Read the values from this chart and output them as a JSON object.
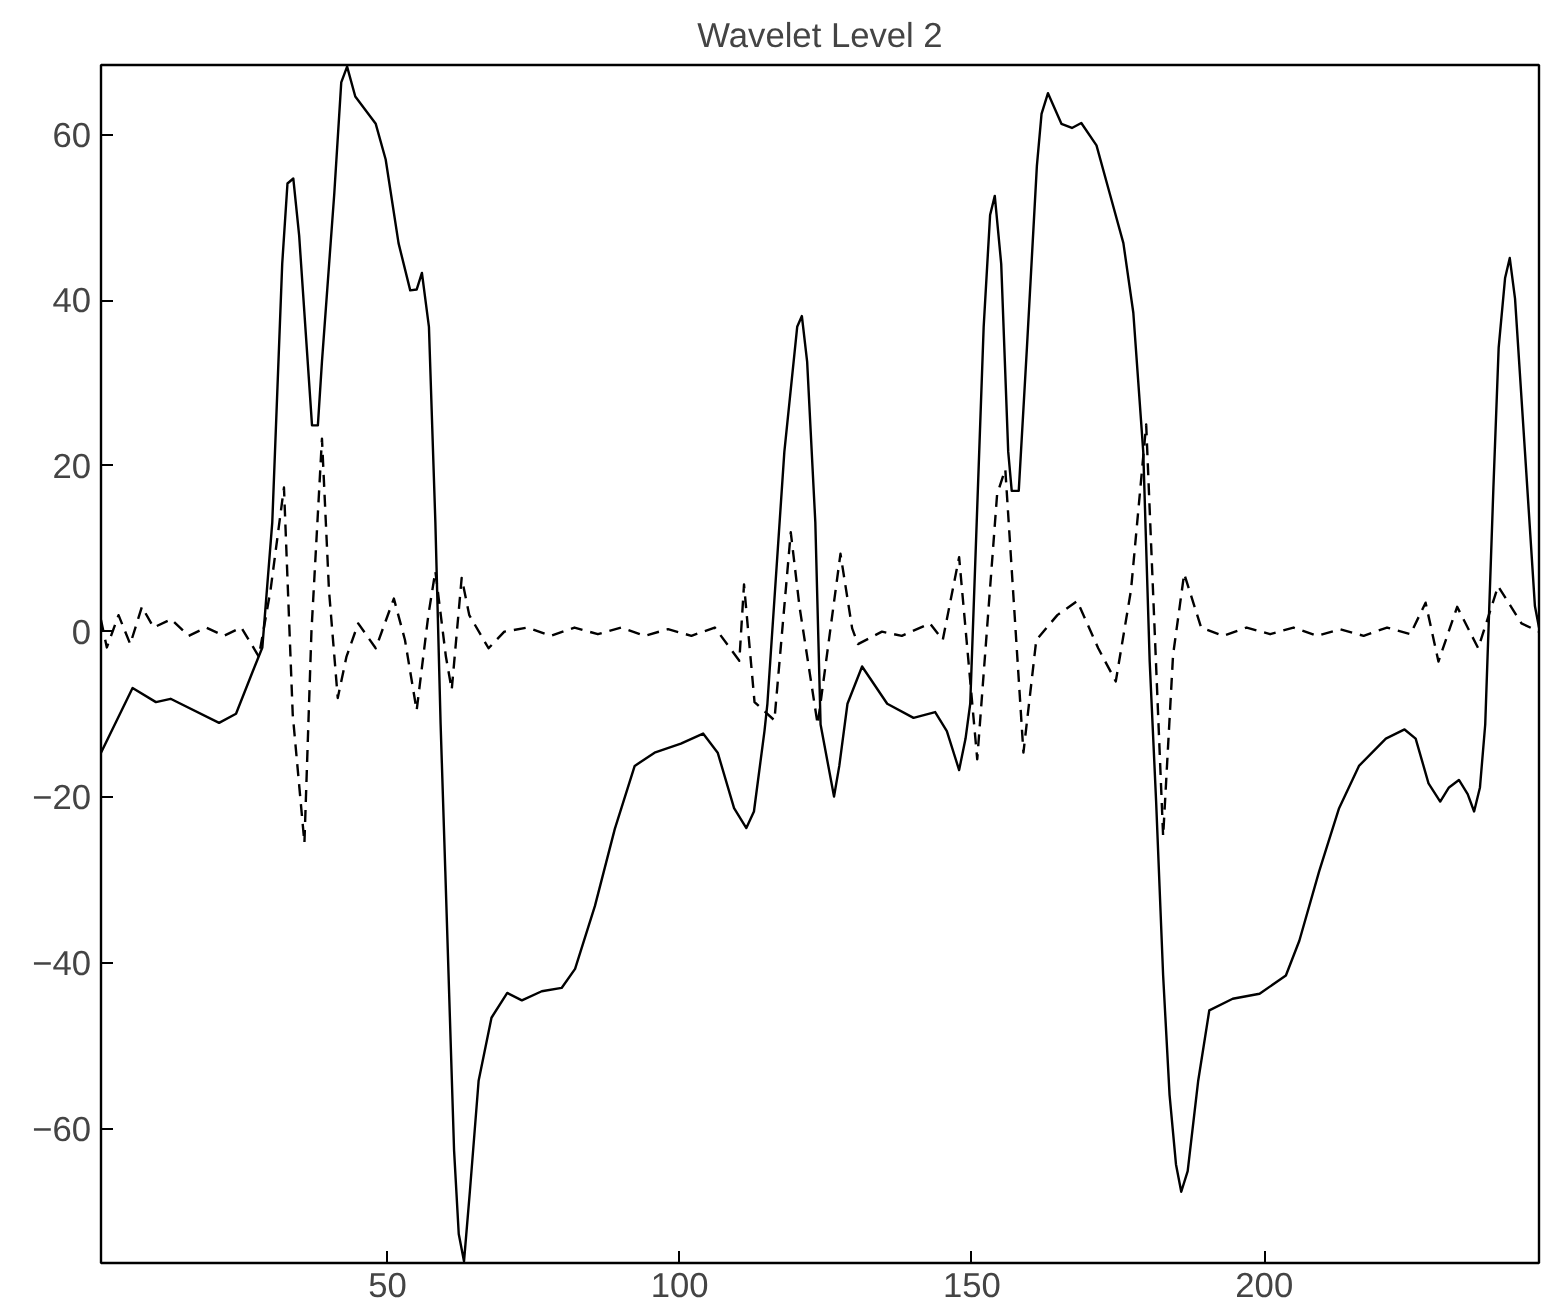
{
  "chart_data": {
    "type": "line",
    "title": "Wavelet Level 2",
    "xlim": [
      1,
      247
    ],
    "ylim": [
      -76.2,
      68.4
    ],
    "xticks": [
      50,
      100,
      150,
      200
    ],
    "yticks": [
      -60,
      -40,
      -20,
      0,
      20,
      40,
      60
    ],
    "grid": false,
    "series": [
      {
        "color": "#000000",
        "line_style": "solid",
        "x": [
          1,
          6.4,
          10.4,
          12.9,
          21.2,
          24.1,
          26.9,
          28.6,
          30.3,
          32.0,
          32.9,
          33.9,
          34.9,
          37.1,
          38.1,
          38.8,
          40.9,
          42.1,
          43.1,
          44.5,
          48.0,
          49.7,
          51.9,
          53.9,
          55.0,
          55.9,
          57.1,
          58.2,
          59.1,
          59.9,
          61.4,
          62.2,
          63.1,
          64.1,
          65.6,
          67.8,
          70.5,
          73.0,
          76.4,
          79.8,
          82.1,
          85.5,
          88.9,
          92.3,
          95.7,
          100.2,
          104.0,
          106.5,
          109.3,
          111.4,
          112.7,
          114.5,
          115.0,
          117.9,
          120.1,
          120.9,
          121.8,
          123.2,
          124.1,
          126.4,
          127.3,
          128.7,
          131.2,
          135.5,
          140.0,
          143.7,
          145.7,
          147.8,
          148.9,
          149.7,
          152.0,
          153.1,
          153.9,
          155.0,
          156.2,
          156.8,
          158.0,
          159.4,
          161.1,
          161.9,
          163.0,
          165.3,
          167.1,
          168.7,
          171.3,
          173.6,
          175.9,
          177.6,
          179.3,
          180.4,
          181.5,
          182.7,
          183.8,
          184.9,
          185.8,
          186.9,
          188.7,
          190.6,
          194.6,
          199.2,
          203.7,
          206.0,
          209.4,
          212.8,
          216.2,
          220.8,
          224.0,
          225.9,
          228.1,
          230.1,
          231.6,
          233.3,
          234.8,
          235.9,
          236.9,
          237.8,
          239.2,
          240.1,
          241.2,
          242.0,
          242.9,
          244.6,
          246.3,
          247
        ],
        "values": [
          -14.6,
          -6.8,
          -8.5,
          -8.1,
          -11.0,
          -9.9,
          -4.9,
          -1.9,
          13.2,
          44.4,
          54.1,
          54.7,
          47.8,
          24.9,
          24.9,
          32.6,
          52.8,
          66.3,
          68.2,
          64.6,
          61.3,
          57.0,
          46.9,
          41.2,
          41.3,
          43.3,
          36.8,
          13.2,
          -11.2,
          -28.9,
          -62.6,
          -72.7,
          -76.0,
          -67.6,
          -54.2,
          -46.6,
          -43.6,
          -44.5,
          -43.4,
          -43.0,
          -40.7,
          -33.1,
          -23.8,
          -16.2,
          -14.6,
          -13.5,
          -12.3,
          -14.6,
          -21.3,
          -23.7,
          -21.7,
          -12.0,
          -8.7,
          21.7,
          36.8,
          38.1,
          32.6,
          13.2,
          -11.2,
          -19.9,
          -16.2,
          -8.7,
          -4.2,
          -8.7,
          -10.4,
          -9.7,
          -12.0,
          -16.7,
          -12.9,
          -8.7,
          36.8,
          50.3,
          52.6,
          44.4,
          21.7,
          17.0,
          17.0,
          34.3,
          56.2,
          62.5,
          65.0,
          61.3,
          60.8,
          61.4,
          58.7,
          52.8,
          46.9,
          38.5,
          21.7,
          -3.6,
          -20.5,
          -41.5,
          -55.9,
          -64.3,
          -67.6,
          -65.1,
          -54.2,
          -45.7,
          -44.3,
          -43.7,
          -41.5,
          -37.3,
          -28.9,
          -21.3,
          -16.2,
          -12.9,
          -11.8,
          -12.9,
          -18.3,
          -20.5,
          -18.8,
          -17.9,
          -19.6,
          -21.7,
          -18.8,
          -11.2,
          17.4,
          34.3,
          42.7,
          45.1,
          40.2,
          21.7,
          3.1,
          0.5
        ]
      },
      {
        "color": "#000000",
        "line_style": "dashed",
        "x": [
          1,
          2,
          4,
          6,
          8,
          10,
          13,
          16,
          19,
          22,
          25,
          28,
          30,
          32.3,
          33.8,
          35.8,
          37,
          38.8,
          40,
          41.5,
          43,
          45,
          48,
          51.1,
          53,
          55,
          57,
          58.2,
          60,
          61,
          62.7,
          64,
          67.3,
          70,
          74,
          78,
          82,
          86,
          90,
          94,
          98,
          102,
          106,
          110.2,
          111.0,
          112.8,
          116.2,
          119.0,
          120.5,
          123.6,
          127.5,
          129.5,
          130.5,
          134.6,
          138,
          142.8,
          145,
          147.8,
          150.9,
          154.3,
          155.7,
          158.8,
          161,
          164.6,
          168,
          171.6,
          174.6,
          177.2,
          179.8,
          182.7,
          184.4,
          186.3,
          189.2,
          193,
          197,
          201,
          205,
          209,
          213,
          217,
          221,
          225,
          227.6,
          229.8,
          233,
          236.6,
          240,
          244,
          247
        ],
        "values": [
          1.4,
          -1.9,
          2.0,
          -1.5,
          3.0,
          0.5,
          1.5,
          -0.5,
          0.5,
          -0.5,
          0.5,
          -3.0,
          5.0,
          17.4,
          -10.0,
          -25.5,
          0.0,
          23.3,
          5.0,
          -8.0,
          -3.0,
          1.0,
          -2.0,
          4.0,
          -1.0,
          -9.5,
          2.0,
          7.3,
          -3.0,
          -7.0,
          6.5,
          2.0,
          -2.0,
          0.0,
          0.5,
          -0.5,
          0.5,
          -0.3,
          0.5,
          -0.5,
          0.3,
          -0.5,
          0.5,
          -3.5,
          5.7,
          -8.5,
          -10.7,
          12.0,
          3.0,
          -11.2,
          9.4,
          0.4,
          -1.5,
          0.0,
          -0.5,
          1.0,
          -1.0,
          9.0,
          -15.4,
          16.6,
          19.6,
          -14.6,
          -1.0,
          2.0,
          3.7,
          -2.0,
          -6.0,
          5.0,
          25.0,
          -24.7,
          -2.8,
          7.0,
          0.5,
          -0.5,
          0.5,
          -0.3,
          0.5,
          -0.5,
          0.3,
          -0.5,
          0.5,
          -0.3,
          3.5,
          -3.6,
          3.0,
          -2.0,
          5.5,
          1.0,
          0.0
        ]
      }
    ]
  }
}
